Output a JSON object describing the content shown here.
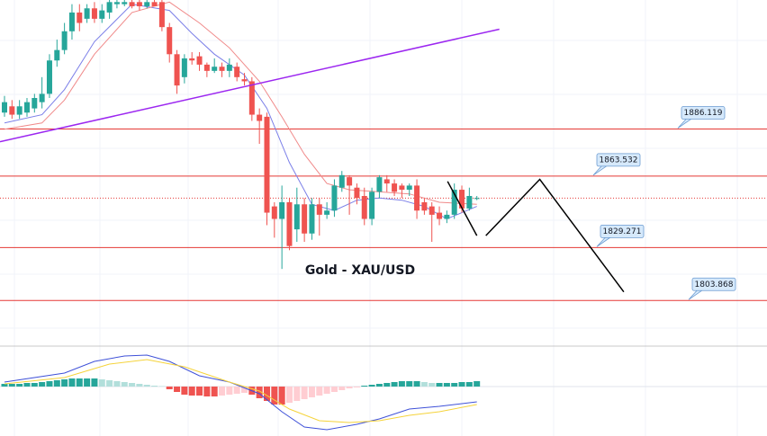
{
  "chart_data": {
    "type": "candlestick",
    "title": "Gold - XAU/USD",
    "xlim": [
      -0.6,
      101.7
    ],
    "ylim": [
      1782,
      1948
    ],
    "up_color": "#26a69a",
    "down_color": "#ef5350",
    "open": [
      1894,
      1897,
      1893,
      1894,
      1896,
      1899,
      1903,
      1919,
      1924,
      1933,
      1942,
      1939,
      1944,
      1939,
      1942,
      1946,
      1946,
      1947,
      1947,
      1945,
      1947,
      1947,
      1935,
      1922,
      1911,
      1920,
      1921,
      1917,
      1914,
      1916,
      1914,
      1916,
      1910,
      1909,
      1893,
      1892,
      1849,
      1843,
      1851,
      1838,
      1850,
      1836,
      1850,
      1845,
      1847,
      1858,
      1863,
      1858,
      1854,
      1843,
      1856,
      1862,
      1860,
      1859,
      1857,
      1859,
      1851,
      1849,
      1846,
      1843,
      1845,
      1857,
      1848,
      1853
    ],
    "high": [
      1902,
      1900,
      1900,
      1901,
      1903,
      1911,
      1922,
      1929,
      1937,
      1946,
      1946,
      1946,
      1947,
      1946,
      1948,
      1948,
      1948,
      1948,
      1948,
      1948,
      1948,
      1948,
      1937,
      1924,
      1922,
      1923,
      1923,
      1918,
      1920,
      1918,
      1920,
      1918,
      1913,
      1911,
      1896,
      1894,
      1851,
      1859,
      1853,
      1858,
      1853,
      1853,
      1853,
      1851,
      1862,
      1866,
      1864,
      1860,
      1858,
      1858,
      1864,
      1864,
      1862,
      1860,
      1860,
      1862,
      1853,
      1851,
      1849,
      1847,
      1860,
      1859,
      1858,
      1854
    ],
    "low": [
      1892,
      1891,
      1891,
      1892,
      1894,
      1896,
      1901,
      1916,
      1922,
      1929,
      1933,
      1937,
      1937,
      1937,
      1939,
      1944,
      1945,
      1944,
      1943,
      1944,
      1945,
      1933,
      1918,
      1903,
      1908,
      1917,
      1914,
      1911,
      1913,
      1911,
      1911,
      1909,
      1907,
      1890,
      1879,
      1840,
      1834,
      1819,
      1828,
      1832,
      1832,
      1833,
      1835,
      1843,
      1844,
      1856,
      1845,
      1850,
      1840,
      1840,
      1853,
      1856,
      1854,
      1853,
      1854,
      1843,
      1845,
      1832,
      1840,
      1841,
      1843,
      1846,
      1847,
      1852
    ],
    "close": [
      1899,
      1893,
      1897,
      1899,
      1901,
      1903,
      1919,
      1924,
      1933,
      1942,
      1937,
      1944,
      1939,
      1943,
      1947,
      1947,
      1947,
      1945,
      1945,
      1947,
      1945,
      1935,
      1922,
      1907,
      1920,
      1919,
      1917,
      1914,
      1916,
      1914,
      1917,
      1911,
      1909,
      1893,
      1890,
      1846,
      1843,
      1851,
      1830,
      1850,
      1836,
      1850,
      1845,
      1847,
      1859,
      1864,
      1859,
      1853,
      1843,
      1856,
      1863,
      1860,
      1856,
      1857,
      1859,
      1847,
      1847,
      1845,
      1843,
      1845,
      1857,
      1848,
      1854,
      1853
    ],
    "moving_averages": [
      {
        "color": "#7b7fe8",
        "x": [
          0,
          5,
          8,
          12,
          17,
          22,
          25,
          28,
          32,
          35,
          38,
          41,
          44,
          47,
          50,
          53,
          56,
          59,
          61,
          63
        ],
        "values": [
          1889,
          1893,
          1905,
          1928,
          1946,
          1943,
          1932,
          1922,
          1912,
          1896,
          1870,
          1850,
          1847,
          1852,
          1853,
          1852,
          1849,
          1843,
          1846,
          1849
        ]
      },
      {
        "color": "#f08a8a",
        "x": [
          0,
          5,
          8,
          12,
          17,
          22,
          26,
          30,
          34,
          37,
          40,
          43,
          46,
          50,
          54,
          58,
          63
        ],
        "values": [
          1886,
          1889,
          1900,
          1922,
          1942,
          1947,
          1937,
          1925,
          1909,
          1892,
          1874,
          1860,
          1857,
          1856,
          1855,
          1851,
          1850
        ]
      }
    ],
    "levels": [
      1886.119,
      1863.532,
      1829.271,
      1803.868
    ],
    "level_color": "#e53935",
    "price_line": 1853,
    "drawings": [
      {
        "color": "#9c27f0",
        "x": [
          -0.6,
          66
        ],
        "values": [
          1880,
          1934
        ]
      },
      {
        "color": "#000000",
        "x": [
          59.1,
          63
        ],
        "values": [
          1861,
          1835
        ]
      },
      {
        "color": "#000000",
        "x": [
          64.2,
          71.4,
          82.6
        ],
        "values": [
          1835,
          1862,
          1808
        ]
      }
    ],
    "macd": {
      "ylim": [
        -5.5,
        4.5
      ],
      "histogram": [
        0.3,
        0.3,
        0.3,
        0.4,
        0.4,
        0.5,
        0.6,
        0.7,
        0.8,
        0.9,
        0.9,
        0.9,
        0.9,
        0.8,
        0.7,
        0.6,
        0.5,
        0.4,
        0.3,
        0.2,
        0.1,
        0.05,
        -0.3,
        -0.6,
        -0.9,
        -1.0,
        -1.0,
        -1.1,
        -1.1,
        -1.0,
        -0.9,
        -0.8,
        -0.7,
        -0.9,
        -1.3,
        -1.6,
        -2.0,
        -2.0,
        -1.8,
        -1.6,
        -1.4,
        -1.2,
        -1.0,
        -0.8,
        -0.6,
        -0.4,
        -0.2,
        -0.1,
        0.1,
        0.2,
        0.3,
        0.4,
        0.5,
        0.6,
        0.6,
        0.6,
        0.5,
        0.4,
        0.4,
        0.4,
        0.4,
        0.5,
        0.5,
        0.6
      ],
      "histogram_colors": [
        "#26a69a",
        "#b2dfdb",
        "#ef5350",
        "#ffcdd2"
      ],
      "lines": [
        {
          "color": "#3f51d8",
          "x": [
            0,
            8,
            12,
            16,
            19,
            22,
            26,
            30,
            34,
            37,
            40,
            43,
            47,
            50,
            54,
            58,
            63
          ],
          "values": [
            0.5,
            1.5,
            2.8,
            3.4,
            3.5,
            2.8,
            1.2,
            0.5,
            -0.8,
            -2.8,
            -4.5,
            -4.8,
            -4.2,
            -3.6,
            -2.5,
            -2.2,
            -1.7
          ]
        },
        {
          "color": "#f5d33a",
          "x": [
            0,
            8,
            14,
            19,
            24,
            30,
            34,
            38,
            42,
            46,
            50,
            54,
            58,
            63
          ],
          "values": [
            0.3,
            1.0,
            2.5,
            3.0,
            2.2,
            0.5,
            -0.5,
            -2.5,
            -3.8,
            -4.0,
            -3.8,
            -3.2,
            -2.8,
            -2.0
          ]
        }
      ]
    }
  }
}
